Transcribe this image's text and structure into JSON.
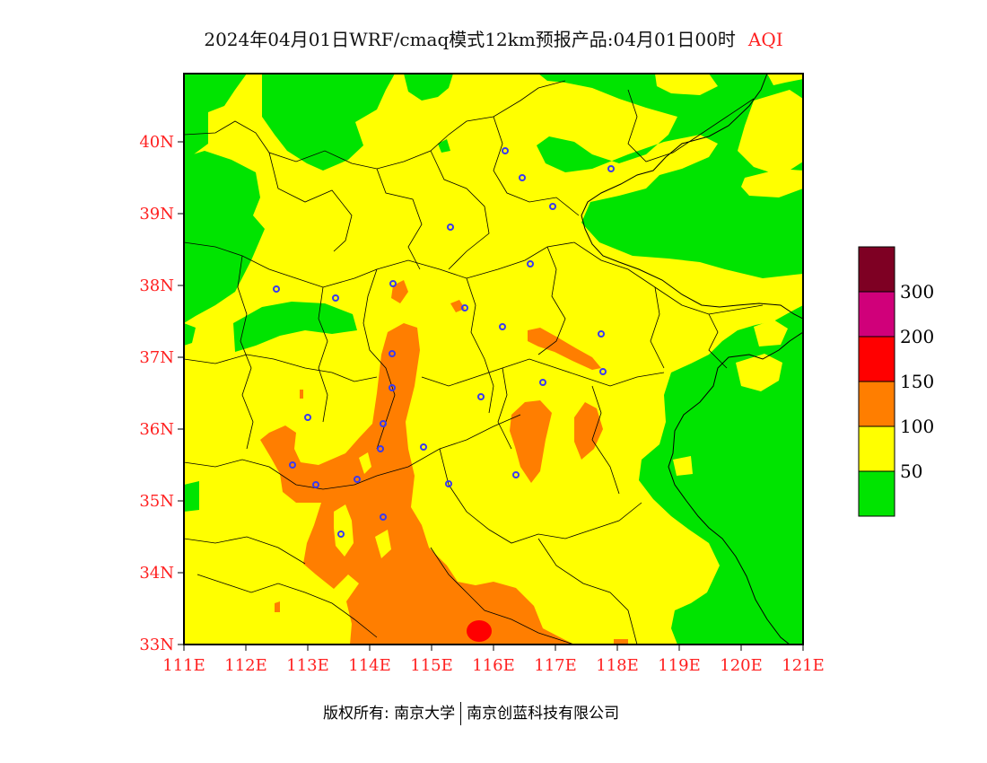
{
  "title": {
    "main": "2024年04月01日WRF/cmaq模式12km预报产品:04月01日00时",
    "variable": "AQI"
  },
  "axes": {
    "latitude_labels": [
      "33N",
      "34N",
      "35N",
      "36N",
      "37N",
      "38N",
      "39N",
      "40N"
    ],
    "longitude_labels": [
      "111E",
      "112E",
      "113E",
      "114E",
      "115E",
      "116E",
      "117E",
      "118E",
      "119E",
      "120E",
      "121E"
    ]
  },
  "legend": {
    "bins": [
      {
        "color": "#00e400",
        "label": "50"
      },
      {
        "color": "#ffff00",
        "label": "100"
      },
      {
        "color": "#ff7e00",
        "label": "150"
      },
      {
        "color": "#ff0000",
        "label": "200"
      },
      {
        "color": "#d0007a",
        "label": "300"
      },
      {
        "color": "#7e0023",
        "label": ""
      }
    ]
  },
  "colors": {
    "green": "#00e400",
    "yellow": "#ffff00",
    "orange": "#ff7e00",
    "red": "#ff0000",
    "axis_text": "#ff2020",
    "city_marker": "#3a3af0"
  },
  "footer": {
    "left": "版权所有: 南京大学",
    "right": "南京创蓝科技有限公司"
  }
}
